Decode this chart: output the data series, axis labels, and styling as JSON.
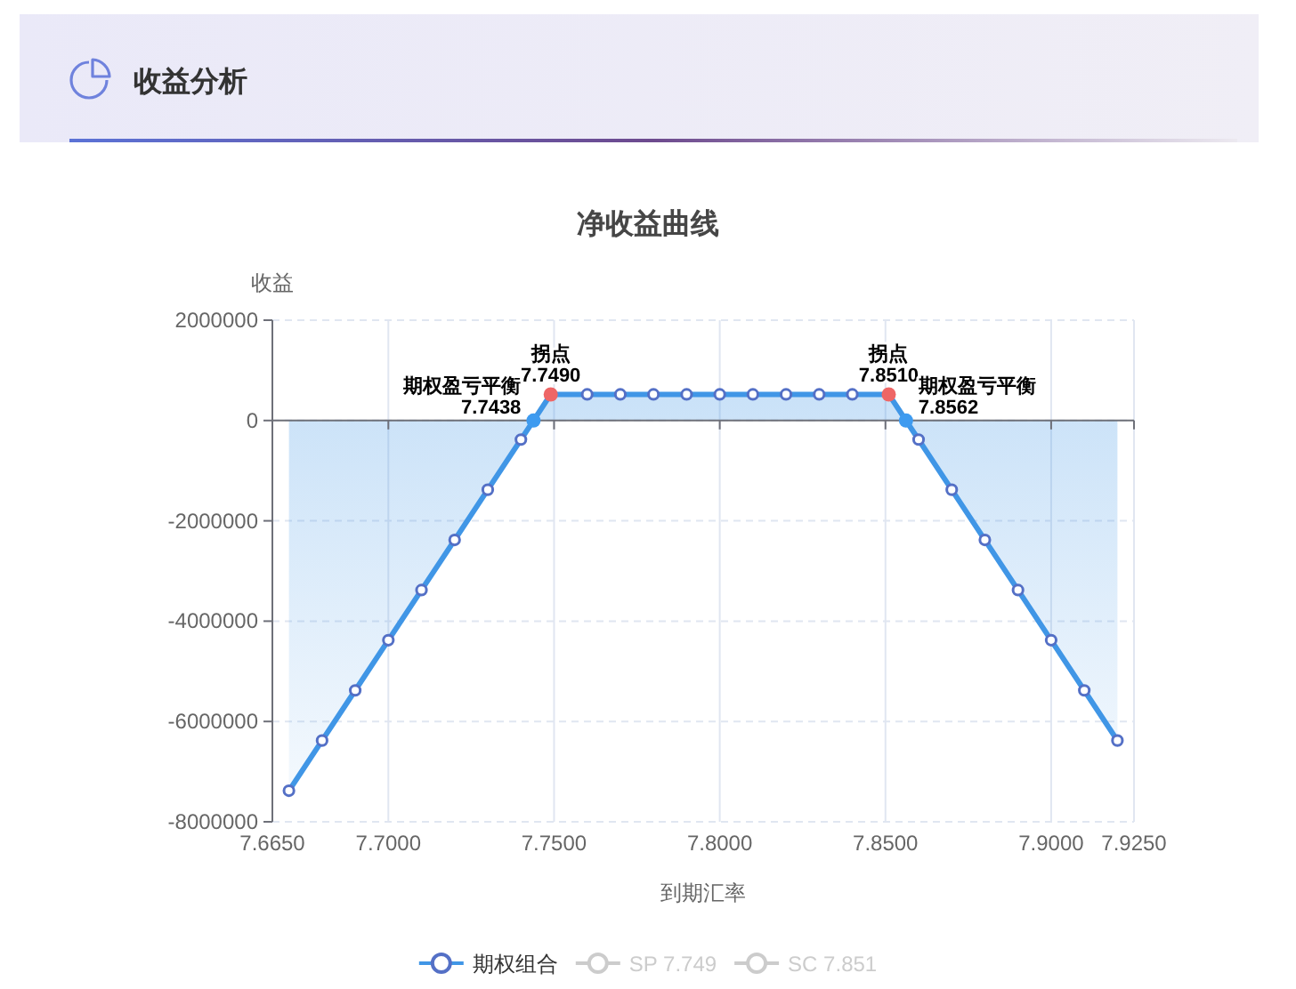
{
  "chart_data": {
    "type": "area",
    "title": "净收益曲线",
    "xlabel": "到期汇率",
    "ylabel": "收益",
    "annotations": [
      "收益分析",
      {
        "text": "拐点\n7.7490",
        "x": 7.749,
        "y": 520000
      },
      {
        "text": "拐点\n7.8510",
        "x": 7.851,
        "y": 520000
      },
      {
        "text": "期权盈亏平衡\n7.7438",
        "x": 7.7438,
        "y": 0
      },
      {
        "text": "期权盈亏平衡\n7.8562",
        "x": 7.8562,
        "y": 0
      }
    ],
    "series": [
      {
        "name": "期权组合",
        "color": "#4096e6",
        "x": [
          7.67,
          7.68,
          7.69,
          7.7,
          7.71,
          7.72,
          7.73,
          7.74,
          7.7438,
          7.749,
          7.76,
          7.77,
          7.78,
          7.79,
          7.8,
          7.81,
          7.82,
          7.83,
          7.84,
          7.851,
          7.8562,
          7.86,
          7.87,
          7.88,
          7.89,
          7.9,
          7.91,
          7.92
        ],
        "values": [
          -7380000,
          -6380000,
          -5380000,
          -4380000,
          -3380000,
          -2380000,
          -1380000,
          -380000,
          0,
          520000,
          520000,
          520000,
          520000,
          520000,
          520000,
          520000,
          520000,
          520000,
          520000,
          520000,
          0,
          -380000,
          -1380000,
          -2380000,
          -3380000,
          -4380000,
          -5380000,
          -6380000
        ]
      },
      {
        "name": "SP 7.749",
        "type": "line",
        "color": "#cccccc"
      },
      {
        "name": "SC 7.851",
        "type": "line",
        "color": "#cccccc"
      },
      {
        "type": "scatter",
        "color": "#ee6666",
        "x": [
          7.749,
          7.851
        ],
        "values": [
          520000,
          520000
        ]
      },
      {
        "type": "scatter",
        "color": "#3e9bf0",
        "x": [
          7.7438,
          7.8562
        ],
        "values": [
          0,
          0
        ]
      }
    ],
    "xlim": [
      7.665,
      7.925
    ],
    "xticks": [
      {
        "value": 7.665,
        "label": "7.6650"
      },
      {
        "value": 7.7,
        "label": "7.7000"
      },
      {
        "value": 7.75,
        "label": "7.7500"
      },
      {
        "value": 7.8,
        "label": "7.8000"
      },
      {
        "value": 7.85,
        "label": "7.8500"
      },
      {
        "value": 7.9,
        "label": "7.9000"
      },
      {
        "value": 7.925,
        "label": "7.9250"
      }
    ],
    "ylim": [
      -8000000,
      2000000
    ],
    "yticks": [
      -8000000,
      -6000000,
      -4000000,
      -2000000,
      0,
      2000000
    ],
    "grid": true,
    "legend": "bottom",
    "marker": "circle",
    "line_style": "solid"
  }
}
